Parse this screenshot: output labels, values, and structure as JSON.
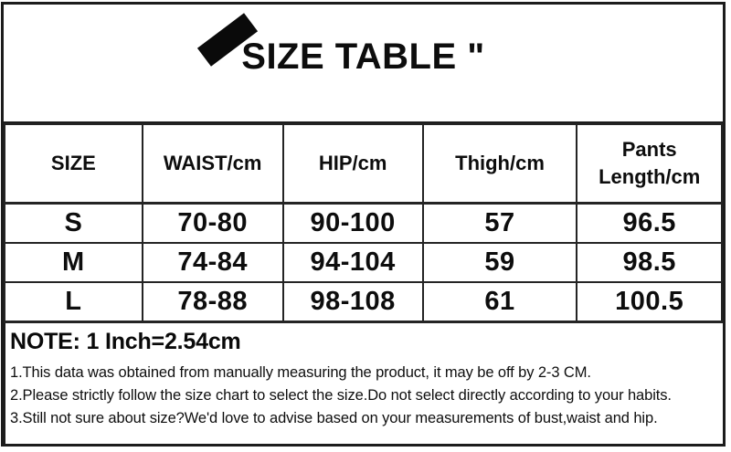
{
  "header": {
    "title": "SIZE TABLE \"",
    "stripe_icon": "diagonal-brush-stripe"
  },
  "table": {
    "columns": [
      "SIZE",
      "WAIST/cm",
      "HIP/cm",
      "Thigh/cm",
      "Pants Length/cm"
    ],
    "rows": [
      [
        "S",
        "70-80",
        "90-100",
        "57",
        "96.5"
      ],
      [
        "M",
        "74-84",
        "94-104",
        "59",
        "98.5"
      ],
      [
        "L",
        "78-88",
        "98-108",
        "61",
        "100.5"
      ]
    ]
  },
  "notes": {
    "heading": "NOTE: 1 Inch=2.54cm",
    "items": [
      "1.This data was obtained from manually measuring the product, it may be off by 2-3 CM.",
      "2.Please strictly follow the size chart to select the size.Do not select directly according to your habits.",
      "3.Still not sure about size?We'd love to advise based on your measurements of bust,waist and hip."
    ]
  },
  "colors": {
    "text": "#0d0d0d",
    "border": "#1c1c1c",
    "background": "#ffffff"
  }
}
